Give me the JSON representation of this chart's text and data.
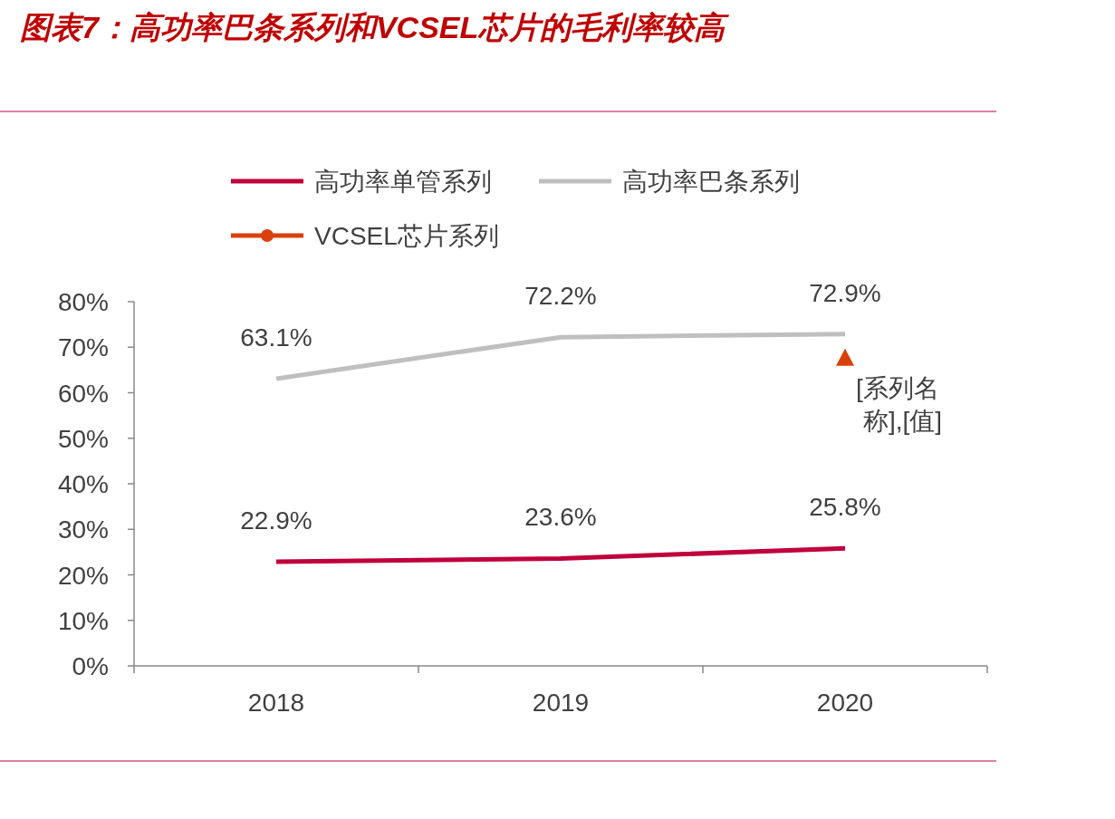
{
  "chart_data": {
    "type": "line",
    "title": "图表7：高功率巴条系列和VCSEL芯片的毛利率较高",
    "categories": [
      "2018",
      "2019",
      "2020"
    ],
    "series": [
      {
        "name": "高功率单管系列",
        "color": "#c0003c",
        "values": [
          22.9,
          23.6,
          25.8
        ],
        "value_labels": [
          "22.9%",
          "23.6%",
          "25.8%"
        ]
      },
      {
        "name": "高功率巴条系列",
        "color": "#bfbfbf",
        "values": [
          63.1,
          72.2,
          72.9
        ],
        "value_labels": [
          "63.1%",
          "72.2%",
          "72.9%"
        ]
      },
      {
        "name": "VCSEL芯片系列",
        "color": "#d9400b",
        "values": [
          null,
          null,
          67.5
        ],
        "marker": "triangle"
      }
    ],
    "ylim": [
      0,
      80
    ],
    "yticks": [
      {
        "value": 0,
        "label": "0%"
      },
      {
        "value": 10,
        "label": "10%"
      },
      {
        "value": 20,
        "label": "20%"
      },
      {
        "value": 30,
        "label": "30%"
      },
      {
        "value": 40,
        "label": "40%"
      },
      {
        "value": 50,
        "label": "50%"
      },
      {
        "value": 60,
        "label": "60%"
      },
      {
        "value": 70,
        "label": "70%"
      },
      {
        "value": 80,
        "label": "80%"
      }
    ],
    "annotations": [
      {
        "text": "[系列名称],[值]",
        "x": "2020",
        "y": 67.5
      }
    ],
    "legend": "top",
    "grid": false
  }
}
